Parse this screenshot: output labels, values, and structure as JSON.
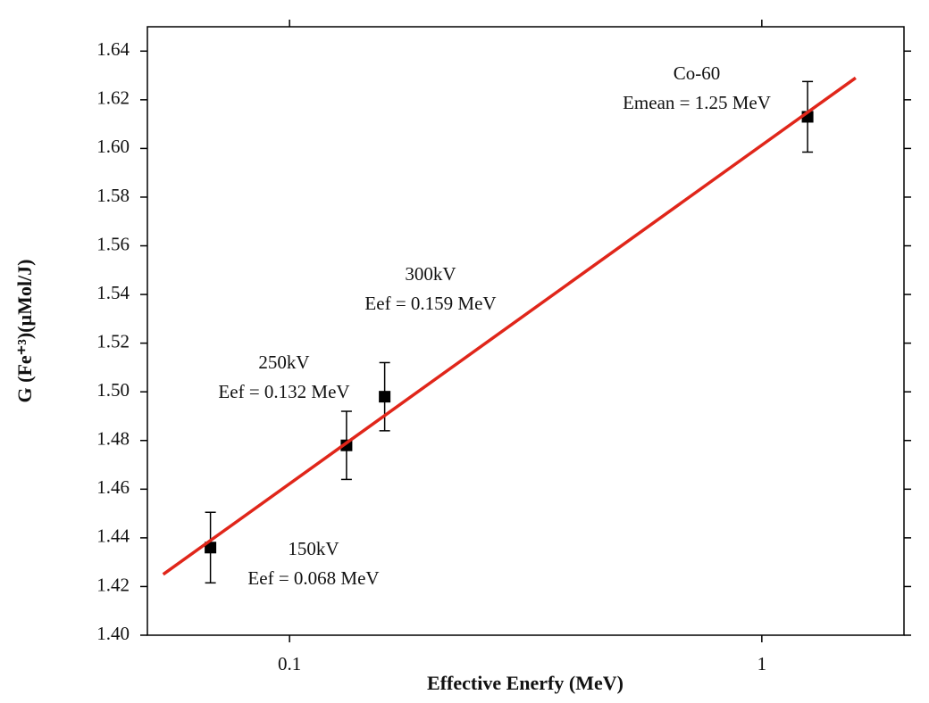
{
  "chart_data": {
    "type": "scatter",
    "x_label": "Effective Enerfy (MeV)",
    "y_label": "G (Fe⁺³)(µMol/J)",
    "xscale": "log",
    "xlim": [
      0.05,
      2
    ],
    "xticks": [
      0.1,
      1
    ],
    "ylim": [
      1.4,
      1.65
    ],
    "yticks": [
      {
        "value": 1.4,
        "label": "1.40"
      },
      {
        "value": 1.42,
        "label": "1.42"
      },
      {
        "value": 1.44,
        "label": "1.44"
      },
      {
        "value": 1.46,
        "label": "1.46"
      },
      {
        "value": 1.48,
        "label": "1.48"
      },
      {
        "value": 1.5,
        "label": "1.50"
      },
      {
        "value": 1.52,
        "label": "1.52"
      },
      {
        "value": 1.54,
        "label": "1.54"
      },
      {
        "value": 1.56,
        "label": "1.56"
      },
      {
        "value": 1.58,
        "label": "1.58"
      },
      {
        "value": 1.6,
        "label": "1.60"
      },
      {
        "value": 1.62,
        "label": "1.62"
      },
      {
        "value": 1.64,
        "label": "1.64"
      }
    ],
    "series": [
      {
        "type": "scatter",
        "color": "#000000",
        "x": [
          0.068,
          0.132,
          0.159,
          1.25
        ],
        "values": [
          1.436,
          1.478,
          1.498,
          1.613
        ],
        "errors": [
          0.0145,
          0.014,
          0.014,
          0.0145
        ]
      },
      {
        "type": "line",
        "color": "#e0261a",
        "x": [
          0.054,
          1.58
        ],
        "values": [
          1.425,
          1.629
        ]
      }
    ],
    "annotations": [
      [
        "150kV",
        "Eef = 0.068 MeV"
      ],
      [
        "250kV",
        "Eef = 0.132 MeV"
      ],
      [
        "300kV",
        "Eef = 0.159 MeV"
      ],
      [
        "Co-60",
        "Emean = 1.25 MeV"
      ]
    ]
  }
}
